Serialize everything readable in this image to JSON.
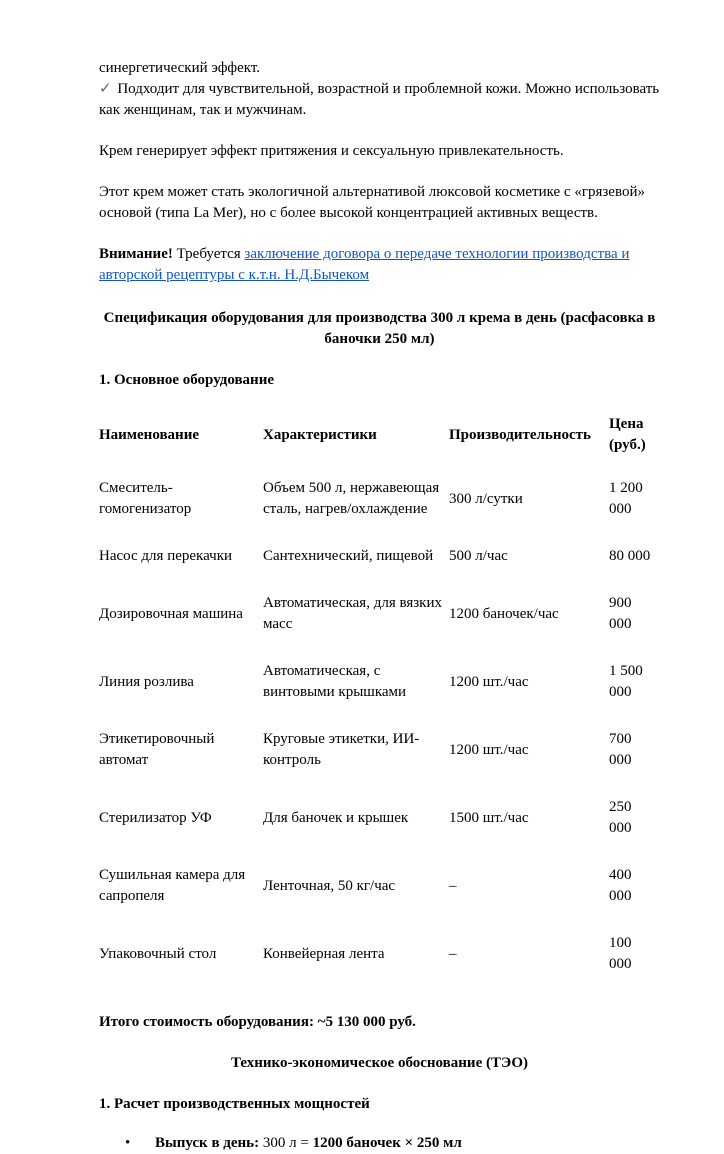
{
  "page": {
    "paragraphs": {
      "p1": "синергетический эффект.",
      "check_icon": "✓",
      "p2": " Подходит для чувствительной, возрастной и проблемной кожи. Можно использовать как женщинам, так и мужчинам.",
      "p3": "Крем генерирует эффект притяжения и сексуальную привлекательность.",
      "p4": "Этот крем может стать экологичной альтернативой люксовой косметике с «грязевой» основой (типа La Mer), но с более высокой концентрацией активных веществ.",
      "attention_bold": "Внимание!",
      "attention_mid": " Требуется ",
      "attention_link": "заключение договора о передаче технологии производства и авторской рецептуры с к.т.н. Н.Д.Бычеком"
    },
    "spec_heading": "Спецификация оборудования для производства 300 л крема в день (расфасовка в баночки 250 мл)",
    "section1_title": "1. Основное оборудование",
    "table": {
      "headers": [
        "Наименование",
        "Характеристики",
        "Производительность",
        "Цена (руб.)"
      ],
      "rows": [
        {
          "name": "Смеситель-гомогенизатор",
          "specs": "Объем 500 л, нержавеющая сталь, нагрев/охлаждение",
          "capacity": "300 л/сутки",
          "price": "1 200 000"
        },
        {
          "name": "Насос для перекачки",
          "specs": "Сантехнический, пищевой",
          "capacity": "500 л/час",
          "price": "80 000"
        },
        {
          "name": "Дозировочная машина",
          "specs": "Автоматическая, для вязких масс",
          "capacity": "1200 баночек/час",
          "price": "900 000"
        },
        {
          "name": "Линия розлива",
          "specs": "Автоматическая, с винтовыми крышками",
          "capacity": "1200 шт./час",
          "price": "1 500 000"
        },
        {
          "name": "Этикетировочный автомат",
          "specs": "Круговые этикетки, ИИ-контроль",
          "capacity": "1200 шт./час",
          "price": "700 000"
        },
        {
          "name": "Стерилизатор УФ",
          "specs": "Для баночек и крышек",
          "capacity": "1500 шт./час",
          "price": "250 000"
        },
        {
          "name": "Сушильная камера для сапропеля",
          "specs": "Ленточная, 50 кг/час",
          "capacity": "–",
          "price": "400 000"
        },
        {
          "name": "Упаковочный стол",
          "specs": "Конвейерная лента",
          "capacity": "–",
          "price": "100 000"
        }
      ]
    },
    "total_line": "Итого стоимость оборудования: ~5 130 000 руб.",
    "teo_heading": "Технико-экономическое обоснование (ТЭО)",
    "section2_title": "1. Расчет производственных мощностей",
    "bullet": {
      "marker": "•",
      "bold1": "Выпуск в день:",
      "regular": " 300 л = ",
      "bold2": "1200 баночек × 250 мл"
    },
    "colors": {
      "link": "#1155CC",
      "text": "#000000"
    }
  }
}
